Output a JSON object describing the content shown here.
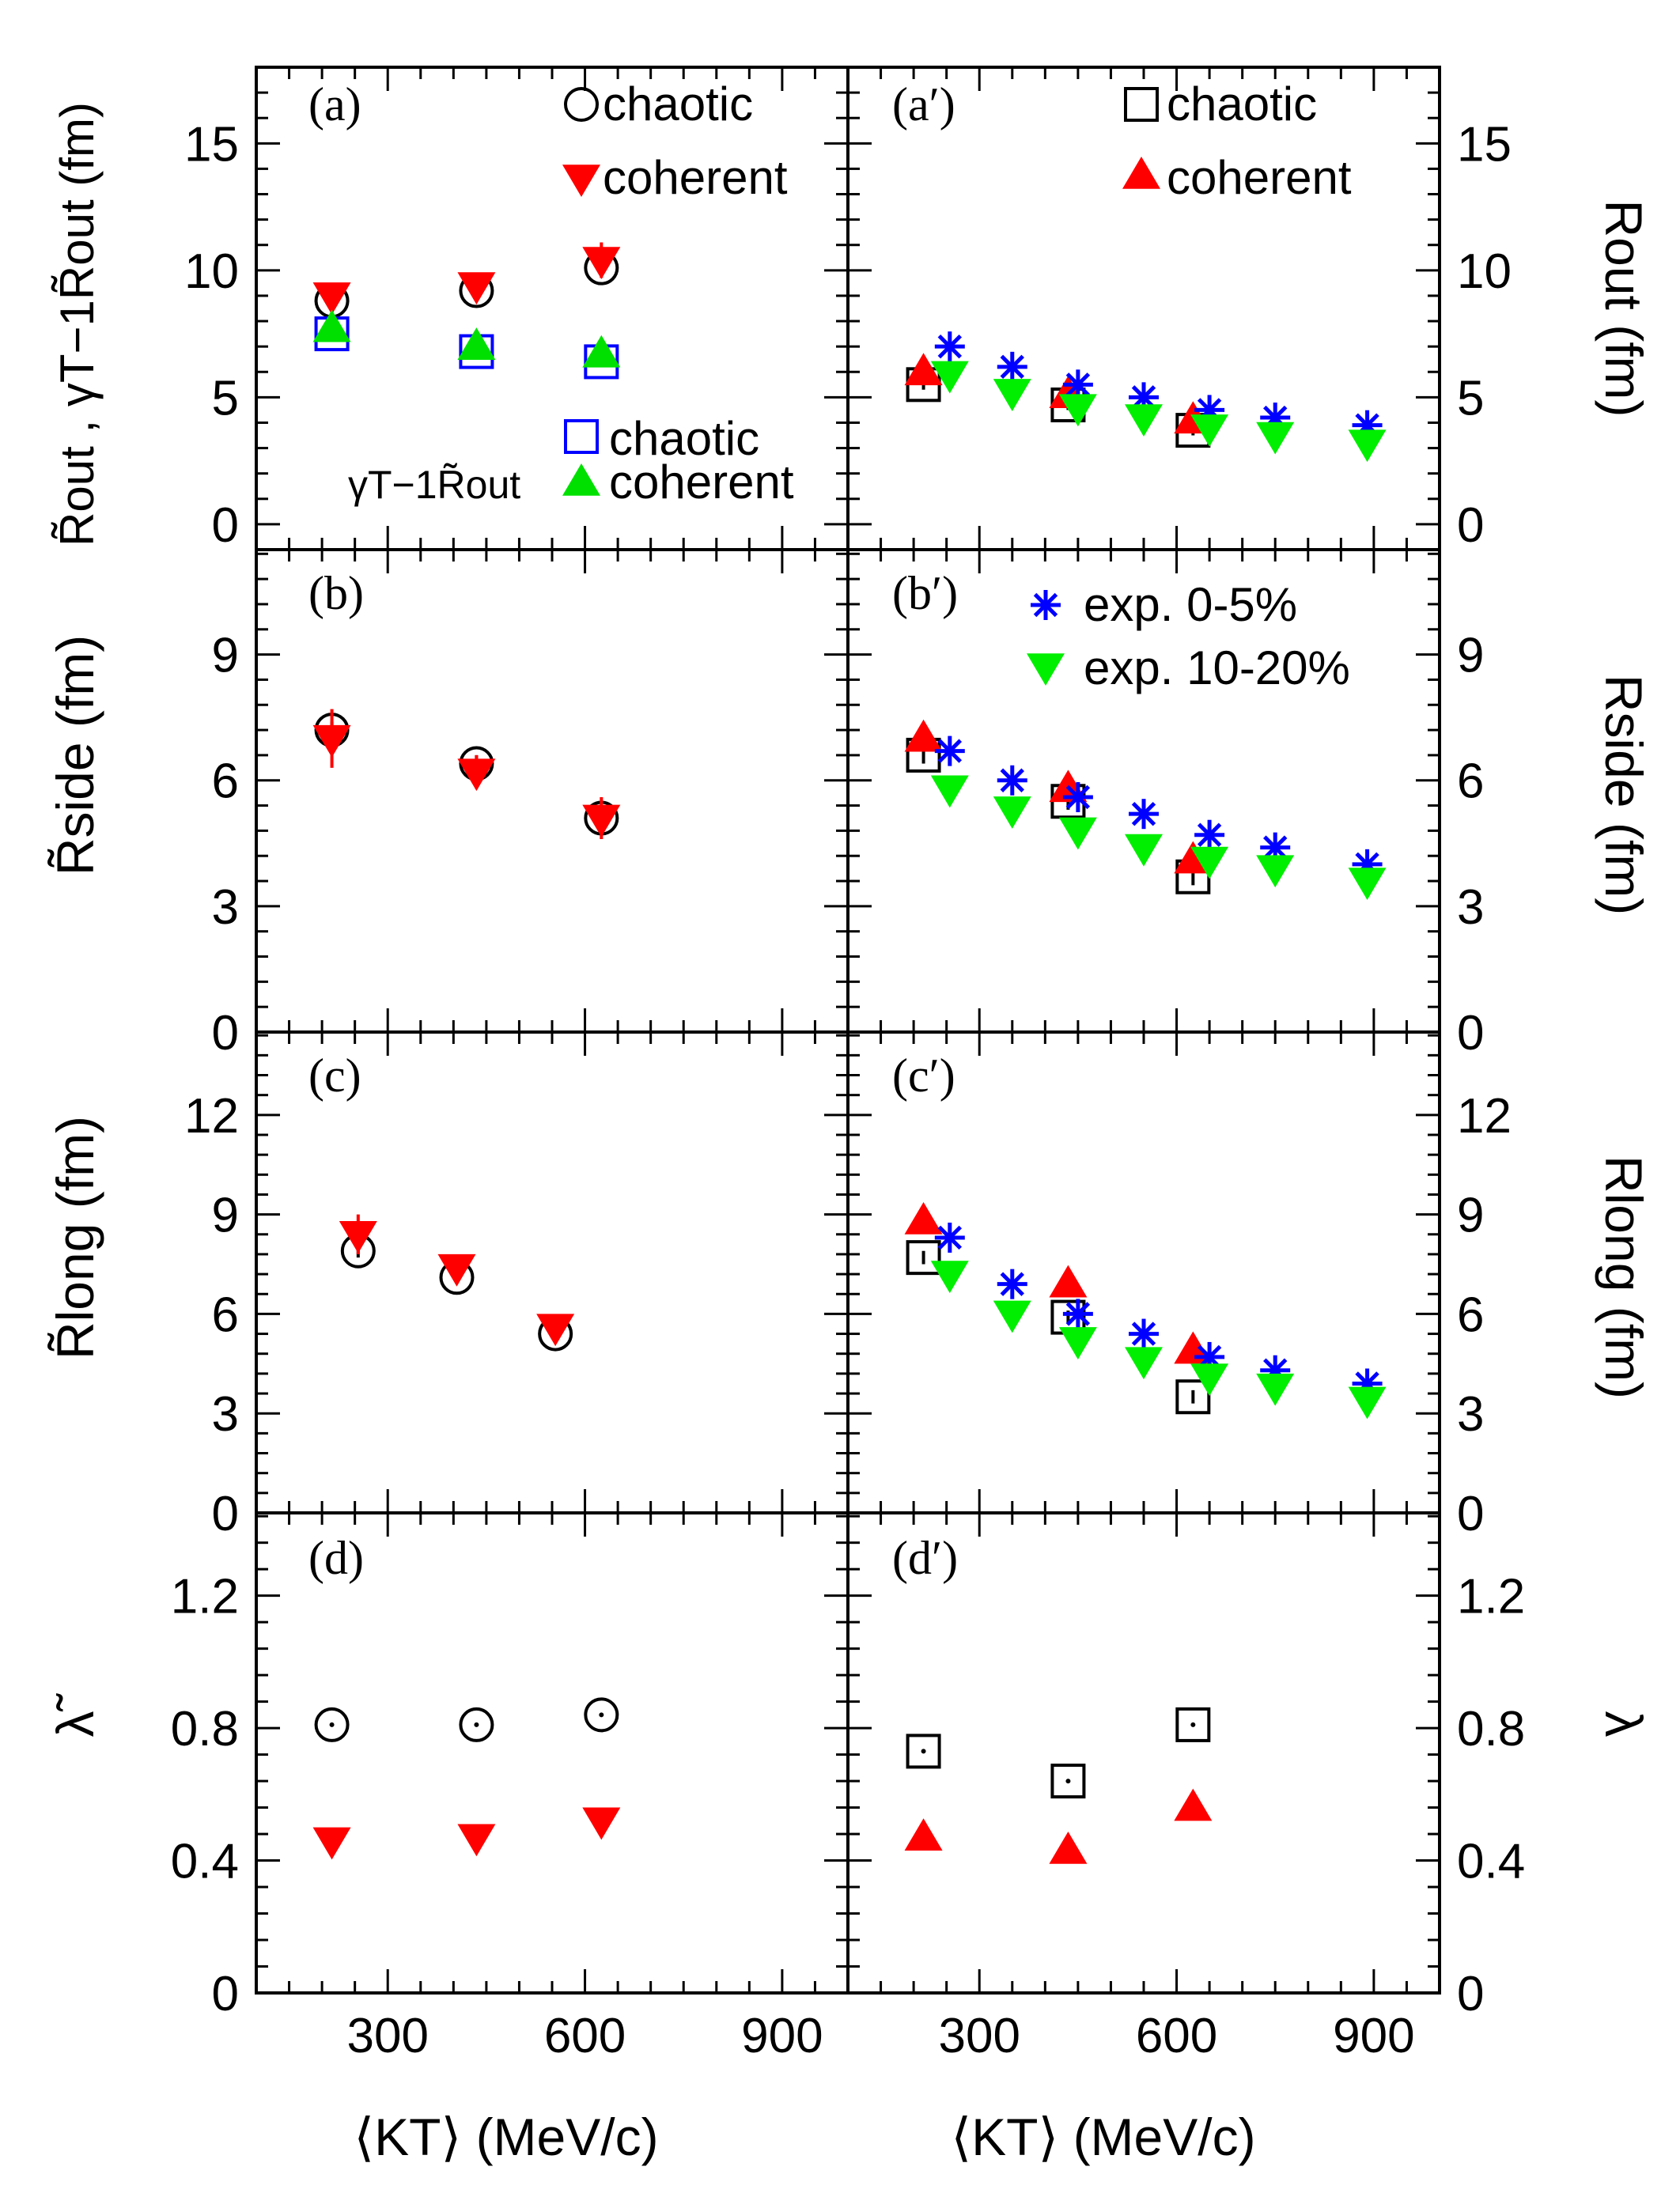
{
  "figure": {
    "x_axis_title": "⟨K_T⟩ (MeV/c)",
    "x_axis_title_left": "⟨KT⟩ (MeV/c)",
    "x_axis_title_right": "⟨KT⟩ (MeV/c)"
  },
  "colors": {
    "chaotic": "#000000",
    "coherent_left": "#ff0000",
    "coherent_right": "#ff0000",
    "gamma_chaotic": "#0000ff",
    "gamma_coherent": "#00e000",
    "exp_0_5": "#0000ff",
    "exp_10_20": "#00ee00"
  },
  "labels": {
    "tag_a": "(a)",
    "tag_a2": "(a′)",
    "tag_b": "(b)",
    "tag_b2": "(b′)",
    "tag_c": "(c)",
    "tag_c2": "(c′)",
    "tag_d": "(d)",
    "tag_d2": "(d′)",
    "legend_chaotic": "chaotic",
    "legend_coherent": "coherent",
    "legend_gamma_prefix": "γT−1R̃out",
    "legend_exp_0_5": "exp. 0-5%",
    "legend_exp_10_20": "exp. 10-20%",
    "y_left_a": "R̃out , γT−1R̃out (fm)",
    "y_left_b": "R̃side (fm)",
    "y_left_c": "R̃long (fm)",
    "y_left_d": "λ̃",
    "y_right_a": "Rout (fm)",
    "y_right_b": "Rside (fm)",
    "y_right_c": "Rlong (fm)",
    "y_right_d": "λ"
  },
  "chart_data": [
    {
      "panel": "a",
      "type": "scatter",
      "xlim": [
        100,
        1000
      ],
      "ylim": [
        -1,
        18
      ],
      "yticks": [
        0,
        5,
        10,
        15
      ],
      "xticks": [
        300,
        600,
        900
      ],
      "xlabel": "⟨K_T⟩ (MeV/c)",
      "ylabel": "R̃out , γT−1R̃out (fm)",
      "series": [
        {
          "name": "chaotic",
          "marker": "circle-open",
          "color": "#000000",
          "x": [
            215,
            435,
            625
          ],
          "y": [
            8.8,
            9.2,
            10.1
          ],
          "err": [
            0.3,
            0.3,
            0.3
          ]
        },
        {
          "name": "coherent",
          "marker": "triangle-down",
          "color": "#ff0000",
          "x": [
            215,
            435,
            625
          ],
          "y": [
            9.0,
            9.4,
            10.4
          ],
          "err": [
            0.5,
            0.5,
            0.7
          ]
        },
        {
          "name": "γT−1R̃out chaotic",
          "marker": "square-open",
          "color": "#0000ff",
          "x": [
            215,
            435,
            625
          ],
          "y": [
            7.5,
            6.8,
            6.4
          ],
          "err": [
            0.2,
            0.2,
            0.2
          ]
        },
        {
          "name": "γT−1R̃out coherent",
          "marker": "triangle-up",
          "color": "#00e000",
          "x": [
            215,
            435,
            625
          ],
          "y": [
            7.7,
            7.0,
            6.7
          ],
          "err": [
            0.3,
            0.3,
            0.3
          ]
        }
      ]
    },
    {
      "panel": "a′",
      "type": "scatter",
      "xlim": [
        100,
        1000
      ],
      "ylim": [
        -1,
        18
      ],
      "yticks": [
        0,
        5,
        10,
        15
      ],
      "xticks": [
        300,
        600,
        900
      ],
      "xlabel": "⟨K_T⟩ (MeV/c)",
      "ylabel": "Rout (fm)",
      "series": [
        {
          "name": "chaotic",
          "marker": "square-open",
          "color": "#000000",
          "x": [
            215,
            435,
            625
          ],
          "y": [
            5.5,
            4.7,
            3.7
          ],
          "err": [
            0.2,
            0.2,
            0.2
          ]
        },
        {
          "name": "coherent",
          "marker": "triangle-up",
          "color": "#ff0000",
          "x": [
            215,
            435,
            625
          ],
          "y": [
            6.0,
            5.1,
            4.1
          ],
          "err": [
            0.3,
            0.3,
            0.3
          ]
        },
        {
          "name": "exp. 0-5%",
          "marker": "asterisk",
          "color": "#0000ff",
          "x": [
            255,
            350,
            450,
            550,
            650,
            750,
            890
          ],
          "y": [
            7.0,
            6.2,
            5.5,
            5.0,
            4.5,
            4.2,
            3.9
          ]
        },
        {
          "name": "exp. 10-20%",
          "marker": "triangle-down",
          "color": "#00ee00",
          "x": [
            255,
            350,
            450,
            550,
            650,
            750,
            890
          ],
          "y": [
            5.9,
            5.2,
            4.6,
            4.2,
            3.8,
            3.5,
            3.2
          ]
        }
      ]
    },
    {
      "panel": "b",
      "type": "scatter",
      "xlim": [
        100,
        1000
      ],
      "ylim": [
        0,
        11.5
      ],
      "yticks": [
        0,
        3,
        6,
        9
      ],
      "xticks": [
        300,
        600,
        900
      ],
      "xlabel": "⟨K_T⟩ (MeV/c)",
      "ylabel": "R̃side (fm)",
      "series": [
        {
          "name": "chaotic",
          "marker": "circle-open",
          "color": "#000000",
          "x": [
            215,
            435,
            625
          ],
          "y": [
            7.2,
            6.4,
            5.1
          ],
          "err": [
            0.2,
            0.2,
            0.2
          ]
        },
        {
          "name": "coherent",
          "marker": "triangle-down",
          "color": "#ff0000",
          "x": [
            215,
            435,
            625
          ],
          "y": [
            7.0,
            6.2,
            5.1
          ],
          "err": [
            0.7,
            0.4,
            0.5
          ]
        }
      ]
    },
    {
      "panel": "b′",
      "type": "scatter",
      "xlim": [
        100,
        1000
      ],
      "ylim": [
        0,
        11.5
      ],
      "yticks": [
        0,
        3,
        6,
        9
      ],
      "xticks": [
        300,
        600,
        900
      ],
      "xlabel": "⟨K_T⟩ (MeV/c)",
      "ylabel": "Rside (fm)",
      "series": [
        {
          "name": "chaotic",
          "marker": "square-open",
          "color": "#000000",
          "x": [
            215,
            435,
            625
          ],
          "y": [
            6.6,
            5.5,
            3.7
          ],
          "err": [
            0.2,
            0.2,
            0.2
          ]
        },
        {
          "name": "coherent",
          "marker": "triangle-up",
          "color": "#ff0000",
          "x": [
            215,
            435,
            625
          ],
          "y": [
            7.0,
            5.8,
            4.1
          ],
          "err": [
            0.2,
            0.2,
            0.2
          ]
        },
        {
          "name": "exp. 0-5%",
          "marker": "asterisk",
          "color": "#0000ff",
          "x": [
            255,
            350,
            450,
            550,
            650,
            750,
            890
          ],
          "y": [
            6.7,
            6.0,
            5.6,
            5.2,
            4.7,
            4.4,
            4.0
          ]
        },
        {
          "name": "exp. 10-20%",
          "marker": "triangle-down",
          "color": "#00ee00",
          "x": [
            255,
            350,
            450,
            550,
            650,
            750,
            890
          ],
          "y": [
            5.8,
            5.3,
            4.8,
            4.4,
            4.1,
            3.9,
            3.6
          ]
        }
      ]
    },
    {
      "panel": "c",
      "type": "scatter",
      "xlim": [
        100,
        1000
      ],
      "ylim": [
        0,
        14.5
      ],
      "yticks": [
        0,
        3,
        6,
        9,
        12
      ],
      "xticks": [
        300,
        600,
        900
      ],
      "xlabel": "⟨K_T⟩ (MeV/c)",
      "ylabel": "R̃long (fm)",
      "series": [
        {
          "name": "chaotic",
          "marker": "circle-open",
          "color": "#000000",
          "x": [
            255,
            405,
            555
          ],
          "y": [
            7.9,
            7.1,
            5.4
          ],
          "err": [
            0.2,
            0.2,
            0.2
          ]
        },
        {
          "name": "coherent",
          "marker": "triangle-down",
          "color": "#ff0000",
          "x": [
            255,
            405,
            555
          ],
          "y": [
            8.4,
            7.4,
            5.6
          ],
          "err": [
            0.6,
            0.3,
            0.3
          ]
        }
      ]
    },
    {
      "panel": "c′",
      "type": "scatter",
      "xlim": [
        100,
        1000
      ],
      "ylim": [
        0,
        14.5
      ],
      "yticks": [
        0,
        3,
        6,
        9,
        12
      ],
      "xticks": [
        300,
        600,
        900
      ],
      "xlabel": "⟨K_T⟩ (MeV/c)",
      "ylabel": "Rlong (fm)",
      "series": [
        {
          "name": "chaotic",
          "marker": "square-open",
          "color": "#000000",
          "x": [
            215,
            435,
            625
          ],
          "y": [
            7.7,
            5.9,
            3.5
          ],
          "err": [
            0.2,
            0.2,
            0.2
          ]
        },
        {
          "name": "coherent",
          "marker": "triangle-up",
          "color": "#ff0000",
          "x": [
            215,
            435,
            625
          ],
          "y": [
            8.8,
            6.9,
            4.9
          ],
          "err": [
            0.2,
            0.2,
            0.2
          ]
        },
        {
          "name": "exp. 0-5%",
          "marker": "asterisk",
          "color": "#0000ff",
          "x": [
            255,
            350,
            450,
            550,
            650,
            750,
            890
          ],
          "y": [
            8.3,
            6.9,
            6.0,
            5.4,
            4.7,
            4.3,
            3.9
          ]
        },
        {
          "name": "exp. 10-20%",
          "marker": "triangle-down",
          "color": "#00ee00",
          "x": [
            255,
            350,
            450,
            550,
            650,
            750,
            890
          ],
          "y": [
            7.2,
            6.0,
            5.2,
            4.6,
            4.1,
            3.8,
            3.4
          ]
        }
      ]
    },
    {
      "panel": "d",
      "type": "scatter",
      "xlim": [
        100,
        1000
      ],
      "ylim": [
        0,
        1.45
      ],
      "yticks": [
        0,
        0.4,
        0.8,
        1.2
      ],
      "xticks": [
        300,
        600,
        900
      ],
      "xlabel": "⟨K_T⟩ (MeV/c)",
      "ylabel": "λ̃",
      "series": [
        {
          "name": "chaotic",
          "marker": "circle-open-dot",
          "color": "#000000",
          "x": [
            215,
            435,
            625
          ],
          "y": [
            0.81,
            0.81,
            0.84
          ]
        },
        {
          "name": "coherent",
          "marker": "triangle-down",
          "color": "#ff0000",
          "x": [
            215,
            435,
            625
          ],
          "y": [
            0.46,
            0.47,
            0.52
          ]
        }
      ]
    },
    {
      "panel": "d′",
      "type": "scatter",
      "xlim": [
        100,
        1000
      ],
      "ylim": [
        0,
        1.45
      ],
      "yticks": [
        0,
        0.4,
        0.8,
        1.2
      ],
      "xticks": [
        300,
        600,
        900
      ],
      "xlabel": "⟨K_T⟩ (MeV/c)",
      "ylabel": "λ",
      "series": [
        {
          "name": "chaotic",
          "marker": "square-open-dot",
          "color": "#000000",
          "x": [
            215,
            435,
            625
          ],
          "y": [
            0.73,
            0.64,
            0.81
          ]
        },
        {
          "name": "coherent",
          "marker": "triangle-up",
          "color": "#ff0000",
          "x": [
            215,
            435,
            625
          ],
          "y": [
            0.47,
            0.43,
            0.56
          ]
        }
      ]
    }
  ]
}
